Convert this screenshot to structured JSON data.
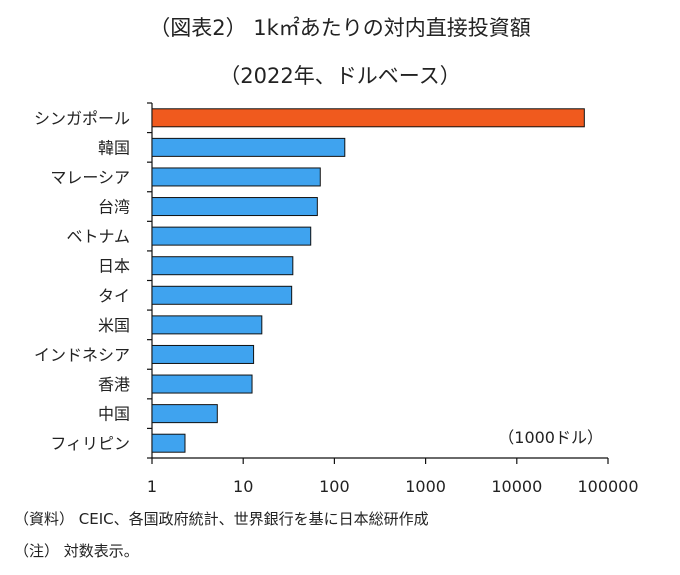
{
  "header": {
    "title_line1": "（図表2） 1k㎡あたりの対内直接投資額",
    "title_line2": "（2022年、ドルベース）"
  },
  "footer": {
    "source": "（資料） CEIC、各国政府統計、世界銀行を基に日本総研作成",
    "note": "（注） 対数表示。"
  },
  "colors": {
    "highlight": "#f05a1e",
    "bar": "#3fa3ef",
    "bar_stroke": "#111111",
    "axis": "#111111"
  },
  "chart_data": {
    "type": "bar",
    "orientation": "horizontal",
    "x_scale": "log",
    "xlim": [
      1,
      100000
    ],
    "x_ticks": [
      "1",
      "10",
      "100",
      "1000",
      "10000",
      "100000"
    ],
    "unit_label": "（1000ドル）",
    "categories": [
      "シンガポール",
      "韓国",
      "マレーシア",
      "台湾",
      "ベトナム",
      "日本",
      "タイ",
      "米国",
      "インドネシア",
      "香港",
      "中国",
      "フィリピン"
    ],
    "values": [
      55000,
      130,
      70,
      65,
      55,
      35,
      34,
      16,
      13,
      12.5,
      5.2,
      2.3
    ],
    "highlight_index": 0
  }
}
